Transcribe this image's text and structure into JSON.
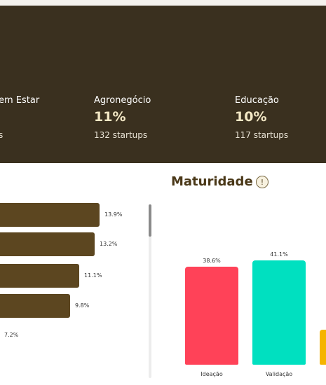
{
  "sectors": [
    {
      "label": "em Estar",
      "percent": "",
      "count": "s"
    },
    {
      "label": "Agronegócio",
      "percent": "11%",
      "count": "132 startups"
    },
    {
      "label": "Educação",
      "percent": "10%",
      "count": "117 startups"
    }
  ],
  "bars": {
    "labels": [
      "13.9%",
      "13.2%",
      "11.1%",
      "9.8%",
      "7.2%"
    ],
    "values": [
      13.9,
      13.2,
      11.1,
      9.8,
      7.2
    ]
  },
  "maturity": {
    "title": "Maturidade",
    "info_icon": "exclamation-circle-icon",
    "info_glyph": "!",
    "items": [
      {
        "category": "Ideação",
        "value_label": "38.6%",
        "value": 38.6,
        "color": "#ff4258"
      },
      {
        "category": "Validação",
        "value_label": "41.1%",
        "value": 41.1,
        "color": "#00e0c0"
      },
      {
        "category": "",
        "value_label": "",
        "value": 8,
        "color": "#f5b400"
      }
    ]
  },
  "colors": {
    "header_bg": "#3a301f",
    "bar": "#5c4620"
  }
}
